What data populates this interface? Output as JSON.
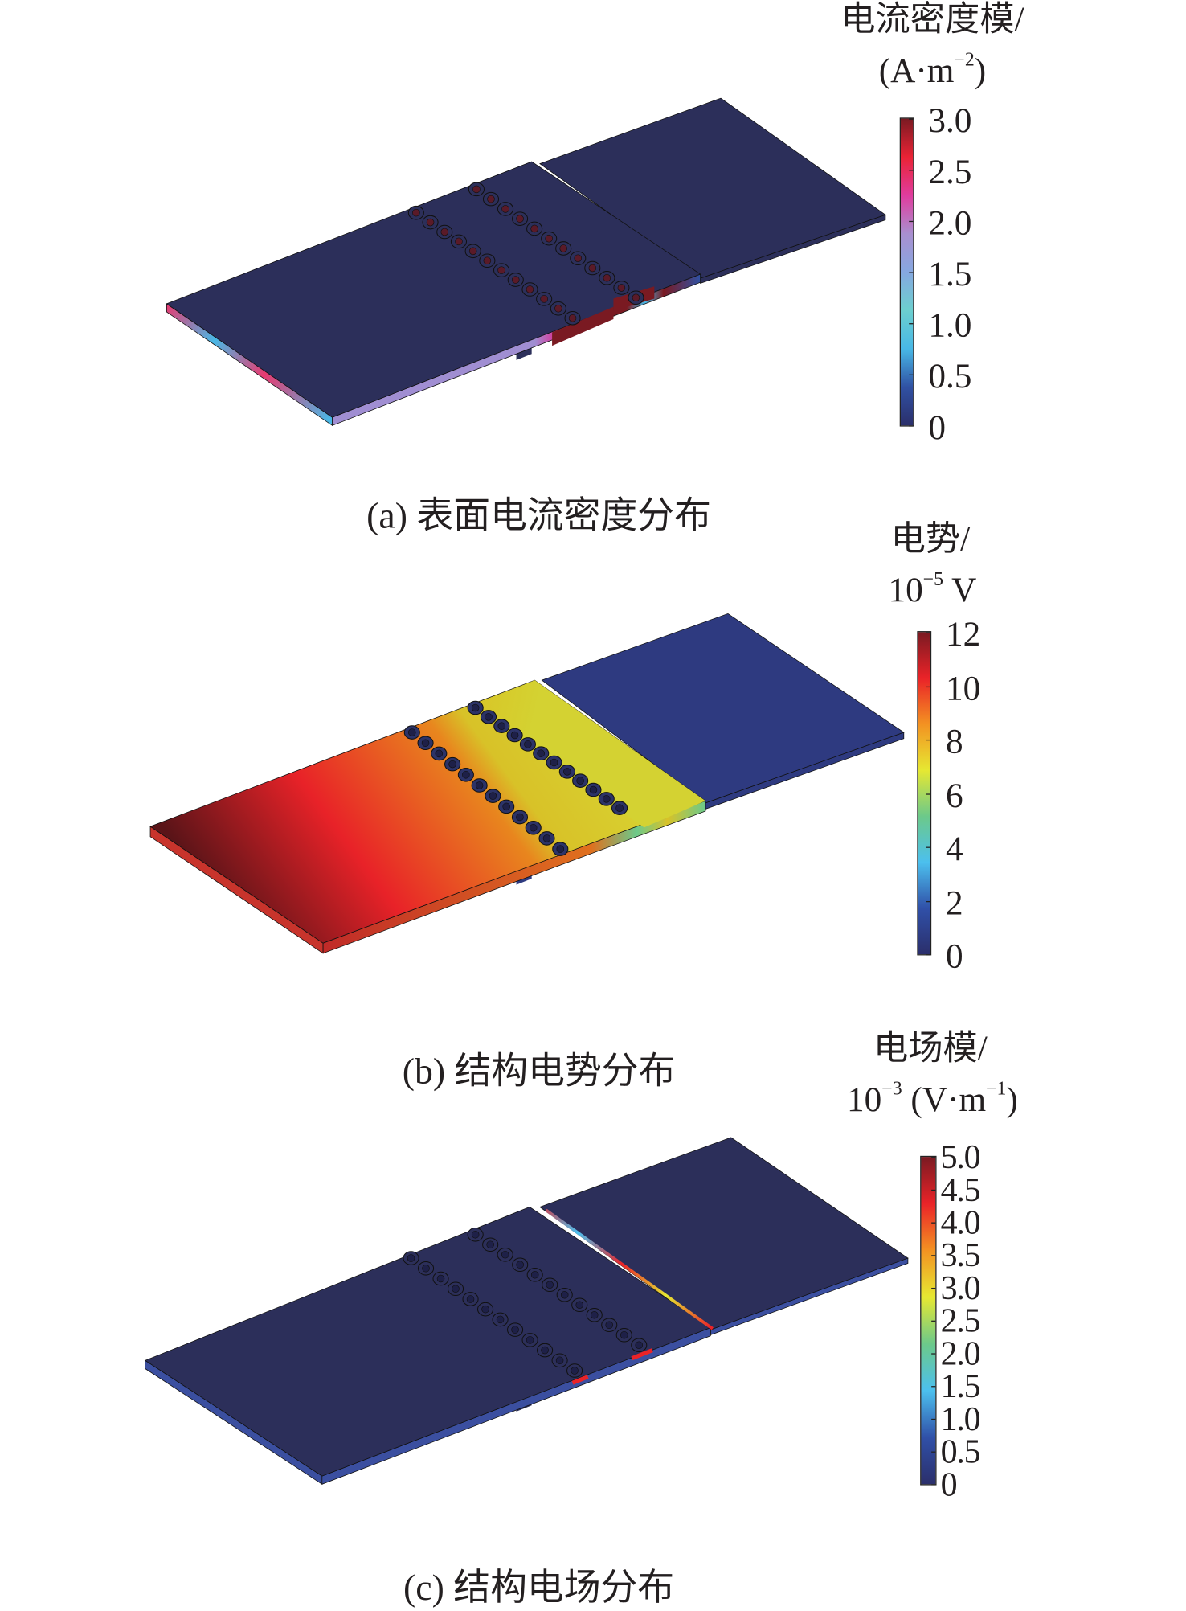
{
  "panels": [
    {
      "caption": "(a) 表面电流密度分布",
      "colorbar": {
        "title_line1": "电流密度模/",
        "unit_open": "(A·m",
        "unit_sup": "−2",
        "unit_close": ")",
        "ticks": [
          "3.0",
          "2.5",
          "2.0",
          "1.5",
          "1.0",
          "0.5",
          "0"
        ],
        "range": [
          0,
          3.0
        ],
        "colors": [
          "#2b2f6b",
          "#3051a3",
          "#48b8e6",
          "#6ccfcf",
          "#86a8e0",
          "#a98fd0",
          "#e03c9e",
          "#ea2335",
          "#7a1a22"
        ]
      },
      "plate_color": "#2c2f5a",
      "hot_color": "#7a1a22"
    },
    {
      "caption": "(b) 结构电势分布",
      "colorbar": {
        "title_line1": "电势/",
        "unit_open": "10",
        "unit_sup": "−5",
        "unit_close": " V",
        "ticks": [
          "12",
          "10",
          "8",
          "6",
          "4",
          "2",
          "0"
        ],
        "range": [
          0,
          12
        ],
        "colors": [
          "#2b2f6b",
          "#3050a8",
          "#4cc0ee",
          "#6cc98a",
          "#e6e832",
          "#f39222",
          "#ea2328",
          "#7a1a22"
        ]
      },
      "plate_color": "#2e3a80"
    },
    {
      "caption": "(c) 结构电场分布",
      "colorbar": {
        "title_line1": "电场模/",
        "unit_open": "10",
        "unit_sup": "−3",
        "unit_mid": " (V·m",
        "unit_sup2": "−1",
        "unit_close": ")",
        "ticks": [
          "5.0",
          "4.5",
          "4.0",
          "3.5",
          "3.0",
          "2.5",
          "2.0",
          "1.5",
          "1.0",
          "0.5",
          "0"
        ],
        "range": [
          0,
          5.0
        ],
        "colors": [
          "#2b2f6b",
          "#3050a8",
          "#4cc0ee",
          "#6cc98a",
          "#e6e832",
          "#f39222",
          "#ea2328",
          "#7a1a22"
        ]
      },
      "plate_color": "#2c2f5a",
      "edge_color": "#3b4fa0"
    }
  ],
  "chart_data": {
    "type": "heatmap",
    "panels": [
      {
        "caption": "(a) 表面电流密度分布",
        "quantity": "电流密度模",
        "unit": "A·m^-2",
        "colorbar_range": [
          0,
          3.0
        ],
        "ticks": [
          3.0,
          2.5,
          2.0,
          1.5,
          1.0,
          0.5,
          0
        ]
      },
      {
        "caption": "(b) 结构电势分布",
        "quantity": "电势",
        "unit": "10^-5 V",
        "colorbar_range": [
          0,
          12
        ],
        "ticks": [
          12,
          10,
          8,
          6,
          4,
          2,
          0
        ]
      },
      {
        "caption": "(c) 结构电场分布",
        "quantity": "电场模",
        "unit": "10^-3 (V·m^-1)",
        "colorbar_range": [
          0,
          5.0
        ],
        "ticks": [
          5.0,
          4.5,
          4.0,
          3.5,
          3.0,
          2.5,
          2.0,
          1.5,
          1.0,
          0.5,
          0
        ]
      }
    ],
    "bolt_holes_per_row": 12,
    "bolt_rows": 2
  }
}
